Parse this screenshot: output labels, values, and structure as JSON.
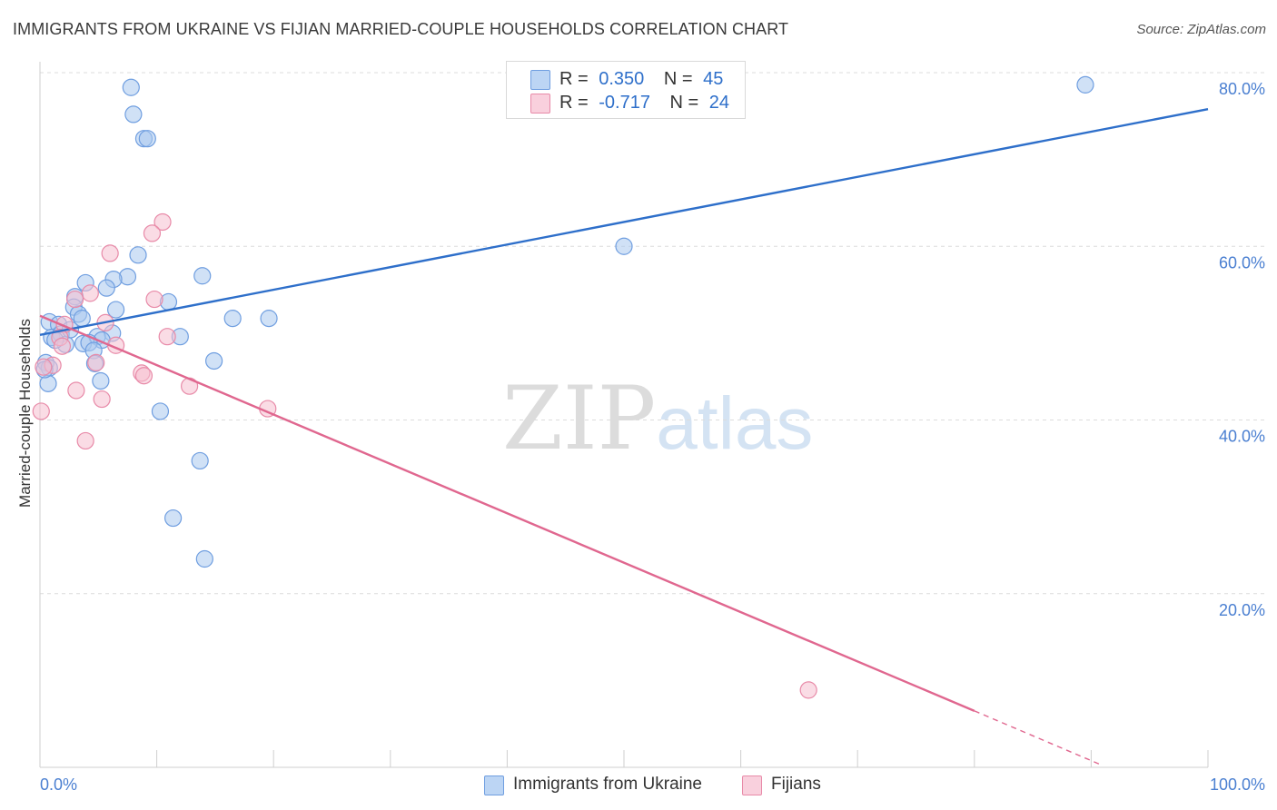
{
  "header": {
    "title": "IMMIGRANTS FROM UKRAINE VS FIJIAN MARRIED-COUPLE HOUSEHOLDS CORRELATION CHART",
    "source": "Source: ZipAtlas.com"
  },
  "legend": {
    "rows": [
      {
        "r_label": "R =",
        "r_value": "0.350",
        "n_label": "N =",
        "n_value": "45"
      },
      {
        "r_label": "R =",
        "r_value": "-0.717",
        "n_label": "N =",
        "n_value": "24"
      }
    ]
  },
  "bottom_legend": {
    "series1": "Immigrants from Ukraine",
    "series2": "Fijians"
  },
  "watermark": {
    "zip": "ZIP",
    "atlas": "atlas"
  },
  "colors": {
    "blue_fill": "#a9c8ef",
    "blue_stroke": "#6f9ee0",
    "blue_line": "#2e6fca",
    "pink_fill": "#f6bfd0",
    "pink_stroke": "#e88aa8",
    "pink_line": "#e0678f",
    "grid": "#dcdcdc",
    "tick_label": "#4a7fd1"
  },
  "chart_data": {
    "type": "scatter",
    "title": "IMMIGRANTS FROM UKRAINE VS FIJIAN MARRIED-COUPLE HOUSEHOLDS CORRELATION CHART",
    "xlabel": "",
    "ylabel": "Married-couple Households",
    "xlim": [
      0,
      100
    ],
    "ylim": [
      0,
      82
    ],
    "x_tick_labels": [
      "0.0%",
      "100.0%"
    ],
    "y_ticks": [
      20,
      40,
      60,
      80
    ],
    "y_tick_labels": [
      "20.0%",
      "40.0%",
      "60.0%",
      "80.0%"
    ],
    "grid": true,
    "series": [
      {
        "name": "Immigrants from Ukraine",
        "r": 0.35,
        "n": 45,
        "points": [
          [
            7.8,
            78.3
          ],
          [
            8.0,
            75.2
          ],
          [
            8.9,
            72.4
          ],
          [
            9.2,
            72.4
          ],
          [
            89.5,
            78.6
          ],
          [
            50.0,
            60.0
          ],
          [
            8.4,
            59.0
          ],
          [
            7.5,
            56.5
          ],
          [
            13.9,
            56.6
          ],
          [
            3.9,
            55.8
          ],
          [
            6.3,
            56.2
          ],
          [
            5.7,
            55.2
          ],
          [
            3.0,
            54.2
          ],
          [
            11.0,
            53.6
          ],
          [
            2.9,
            53.0
          ],
          [
            6.5,
            52.7
          ],
          [
            3.3,
            52.2
          ],
          [
            3.6,
            51.7
          ],
          [
            16.5,
            51.7
          ],
          [
            19.6,
            51.7
          ],
          [
            0.8,
            51.3
          ],
          [
            1.6,
            51.0
          ],
          [
            6.2,
            50.0
          ],
          [
            4.9,
            49.6
          ],
          [
            12.0,
            49.6
          ],
          [
            1.0,
            49.5
          ],
          [
            1.8,
            49.9
          ],
          [
            2.2,
            48.7
          ],
          [
            5.3,
            49.2
          ],
          [
            3.7,
            48.8
          ],
          [
            4.2,
            48.9
          ],
          [
            4.6,
            48.0
          ],
          [
            14.9,
            46.8
          ],
          [
            4.7,
            46.5
          ],
          [
            0.5,
            46.6
          ],
          [
            0.8,
            46.0
          ],
          [
            0.7,
            44.2
          ],
          [
            5.2,
            44.5
          ],
          [
            10.3,
            41.0
          ],
          [
            13.7,
            35.3
          ],
          [
            11.4,
            28.7
          ],
          [
            14.1,
            24.0
          ],
          [
            1.3,
            49.2
          ],
          [
            2.6,
            50.4
          ],
          [
            0.4,
            45.8
          ]
        ],
        "trend": {
          "x_start": 0,
          "y_start": 49.8,
          "x_end": 100,
          "y_end": 75.8
        }
      },
      {
        "name": "Fijians",
        "r": -0.717,
        "n": 24,
        "points": [
          [
            10.5,
            62.8
          ],
          [
            9.6,
            61.5
          ],
          [
            6.0,
            59.2
          ],
          [
            4.3,
            54.6
          ],
          [
            3.0,
            53.9
          ],
          [
            9.8,
            53.9
          ],
          [
            5.6,
            51.2
          ],
          [
            2.1,
            51.0
          ],
          [
            1.7,
            49.5
          ],
          [
            10.9,
            49.6
          ],
          [
            6.5,
            48.6
          ],
          [
            1.9,
            48.5
          ],
          [
            4.8,
            46.6
          ],
          [
            1.1,
            46.3
          ],
          [
            0.3,
            46.1
          ],
          [
            8.7,
            45.4
          ],
          [
            8.9,
            45.1
          ],
          [
            12.8,
            43.9
          ],
          [
            3.1,
            43.4
          ],
          [
            5.3,
            42.4
          ],
          [
            19.5,
            41.3
          ],
          [
            0.1,
            41.0
          ],
          [
            3.9,
            37.6
          ],
          [
            65.8,
            8.9
          ]
        ],
        "trend": {
          "x_start": 0,
          "y_start": 52.0,
          "x_end": 80,
          "y_end": 6.5
        },
        "trend_dashed": {
          "x_start": 80,
          "y_start": 6.5,
          "x_end": 91,
          "y_end": 0.2
        }
      }
    ]
  }
}
